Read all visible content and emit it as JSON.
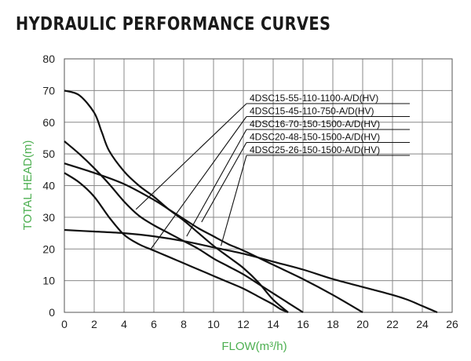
{
  "title": "HYDRAULIC PERFORMANCE CURVES",
  "chart_data": {
    "type": "line",
    "title": "HYDRAULIC PERFORMANCE CURVES",
    "xlabel": "FLOW(m³/h)",
    "ylabel": "TOTAL HEAD(m)",
    "xlim": [
      0,
      26
    ],
    "ylim": [
      0,
      80
    ],
    "xticks": [
      0,
      2,
      4,
      6,
      8,
      10,
      12,
      14,
      16,
      18,
      20,
      22,
      24,
      26
    ],
    "yticks": [
      0,
      10,
      20,
      30,
      40,
      50,
      60,
      70,
      80
    ],
    "grid": true,
    "label_color": "#4caf50",
    "line_color": "#111111",
    "series": [
      {
        "name": "4DSC15-55-110-1100-A/D(HV)",
        "x": [
          0,
          1,
          2,
          2.5,
          3,
          4,
          5,
          6,
          7,
          8,
          9,
          10,
          11,
          12,
          13,
          14,
          15
        ],
        "y": [
          70,
          68.5,
          63,
          57,
          51,
          44.5,
          40,
          36.5,
          32.5,
          29,
          25,
          21,
          17.5,
          14,
          9.5,
          4,
          0
        ],
        "legend_anchor": [
          4.8,
          32.5
        ]
      },
      {
        "name": "4DSC15-45-110-750-A/D(HV)",
        "x": [
          0,
          1,
          2,
          3,
          4,
          5,
          6,
          7,
          8,
          9,
          10,
          11,
          12,
          13,
          14,
          14.5,
          15
        ],
        "y": [
          44,
          41,
          36.5,
          30,
          24.5,
          21.5,
          19.5,
          17.5,
          15.5,
          13.5,
          11.5,
          9.5,
          7.5,
          5,
          2.5,
          1,
          0
        ],
        "legend_anchor": [
          5.8,
          20
        ]
      },
      {
        "name": "4DSC16-70-150-1500-A/D(HV)",
        "x": [
          0,
          1,
          2,
          3,
          4,
          5,
          6,
          7,
          8,
          9,
          10,
          11,
          12,
          13,
          14,
          15,
          16
        ],
        "y": [
          54,
          50,
          45.5,
          40.5,
          35,
          30.5,
          27.5,
          25,
          22.5,
          20,
          17,
          14.5,
          12,
          9,
          6,
          3,
          0
        ],
        "legend_anchor": [
          8.2,
          24
        ]
      },
      {
        "name": "4DSC20-48-150-1500-A/D(HV)",
        "x": [
          0,
          2,
          4,
          6,
          7,
          8,
          9,
          10,
          11,
          12,
          14,
          16,
          18,
          20
        ],
        "y": [
          47,
          44,
          40.5,
          35.5,
          32.5,
          29.5,
          26.5,
          24,
          21.5,
          19.5,
          15,
          10.5,
          5.5,
          0
        ],
        "legend_anchor": [
          9.2,
          28.5
        ]
      },
      {
        "name": "4DSC25-26-150-1500-A/D(HV)",
        "x": [
          0,
          2,
          4,
          6,
          8,
          10,
          12,
          14,
          16,
          18,
          20,
          22,
          23,
          24,
          25
        ],
        "y": [
          26,
          25.5,
          25,
          24,
          22.5,
          20.5,
          18.5,
          16,
          13.5,
          10.5,
          8,
          5.5,
          4,
          2,
          0
        ],
        "legend_anchor": [
          10.5,
          21
        ]
      }
    ]
  }
}
